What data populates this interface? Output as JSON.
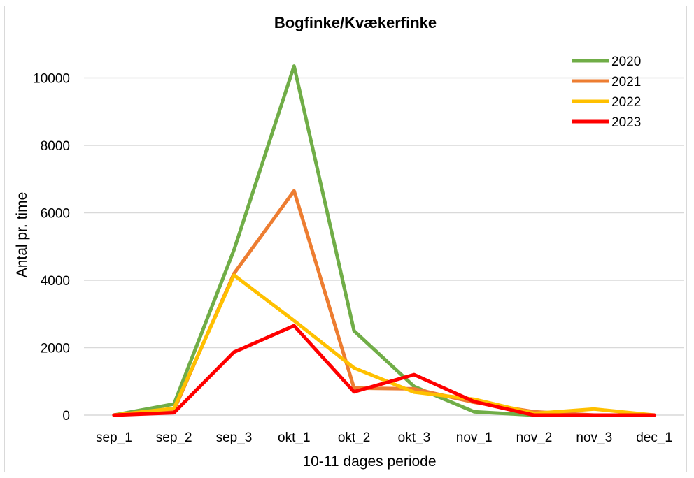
{
  "chart_data": {
    "type": "line",
    "title": "Bogfinke/Kvækerfinke",
    "xlabel": "10-11 dages periode",
    "ylabel": "Antal pr. time",
    "categories": [
      "sep_1",
      "sep_2",
      "sep_3",
      "okt_1",
      "okt_2",
      "okt_3",
      "nov_1",
      "nov_2",
      "nov_3",
      "dec_1"
    ],
    "ylim": [
      0,
      11000
    ],
    "yticks": [
      "0",
      "2000",
      "4000",
      "6000",
      "8000",
      "10000"
    ],
    "grid": true,
    "legend_position": "top-right",
    "series": [
      {
        "name": "2020",
        "color": "#70ad47",
        "values": [
          0,
          330,
          4900,
          10350,
          2500,
          850,
          100,
          0,
          0,
          0
        ]
      },
      {
        "name": "2021",
        "color": "#ed7d31",
        "values": [
          0,
          150,
          4200,
          6650,
          800,
          780,
          380,
          100,
          0,
          0
        ]
      },
      {
        "name": "2022",
        "color": "#ffc000",
        "values": [
          0,
          200,
          4150,
          2800,
          1400,
          680,
          470,
          50,
          180,
          0
        ]
      },
      {
        "name": "2023",
        "color": "#ff0000",
        "values": [
          0,
          70,
          1870,
          2650,
          690,
          1200,
          400,
          0,
          0,
          0
        ]
      }
    ]
  }
}
